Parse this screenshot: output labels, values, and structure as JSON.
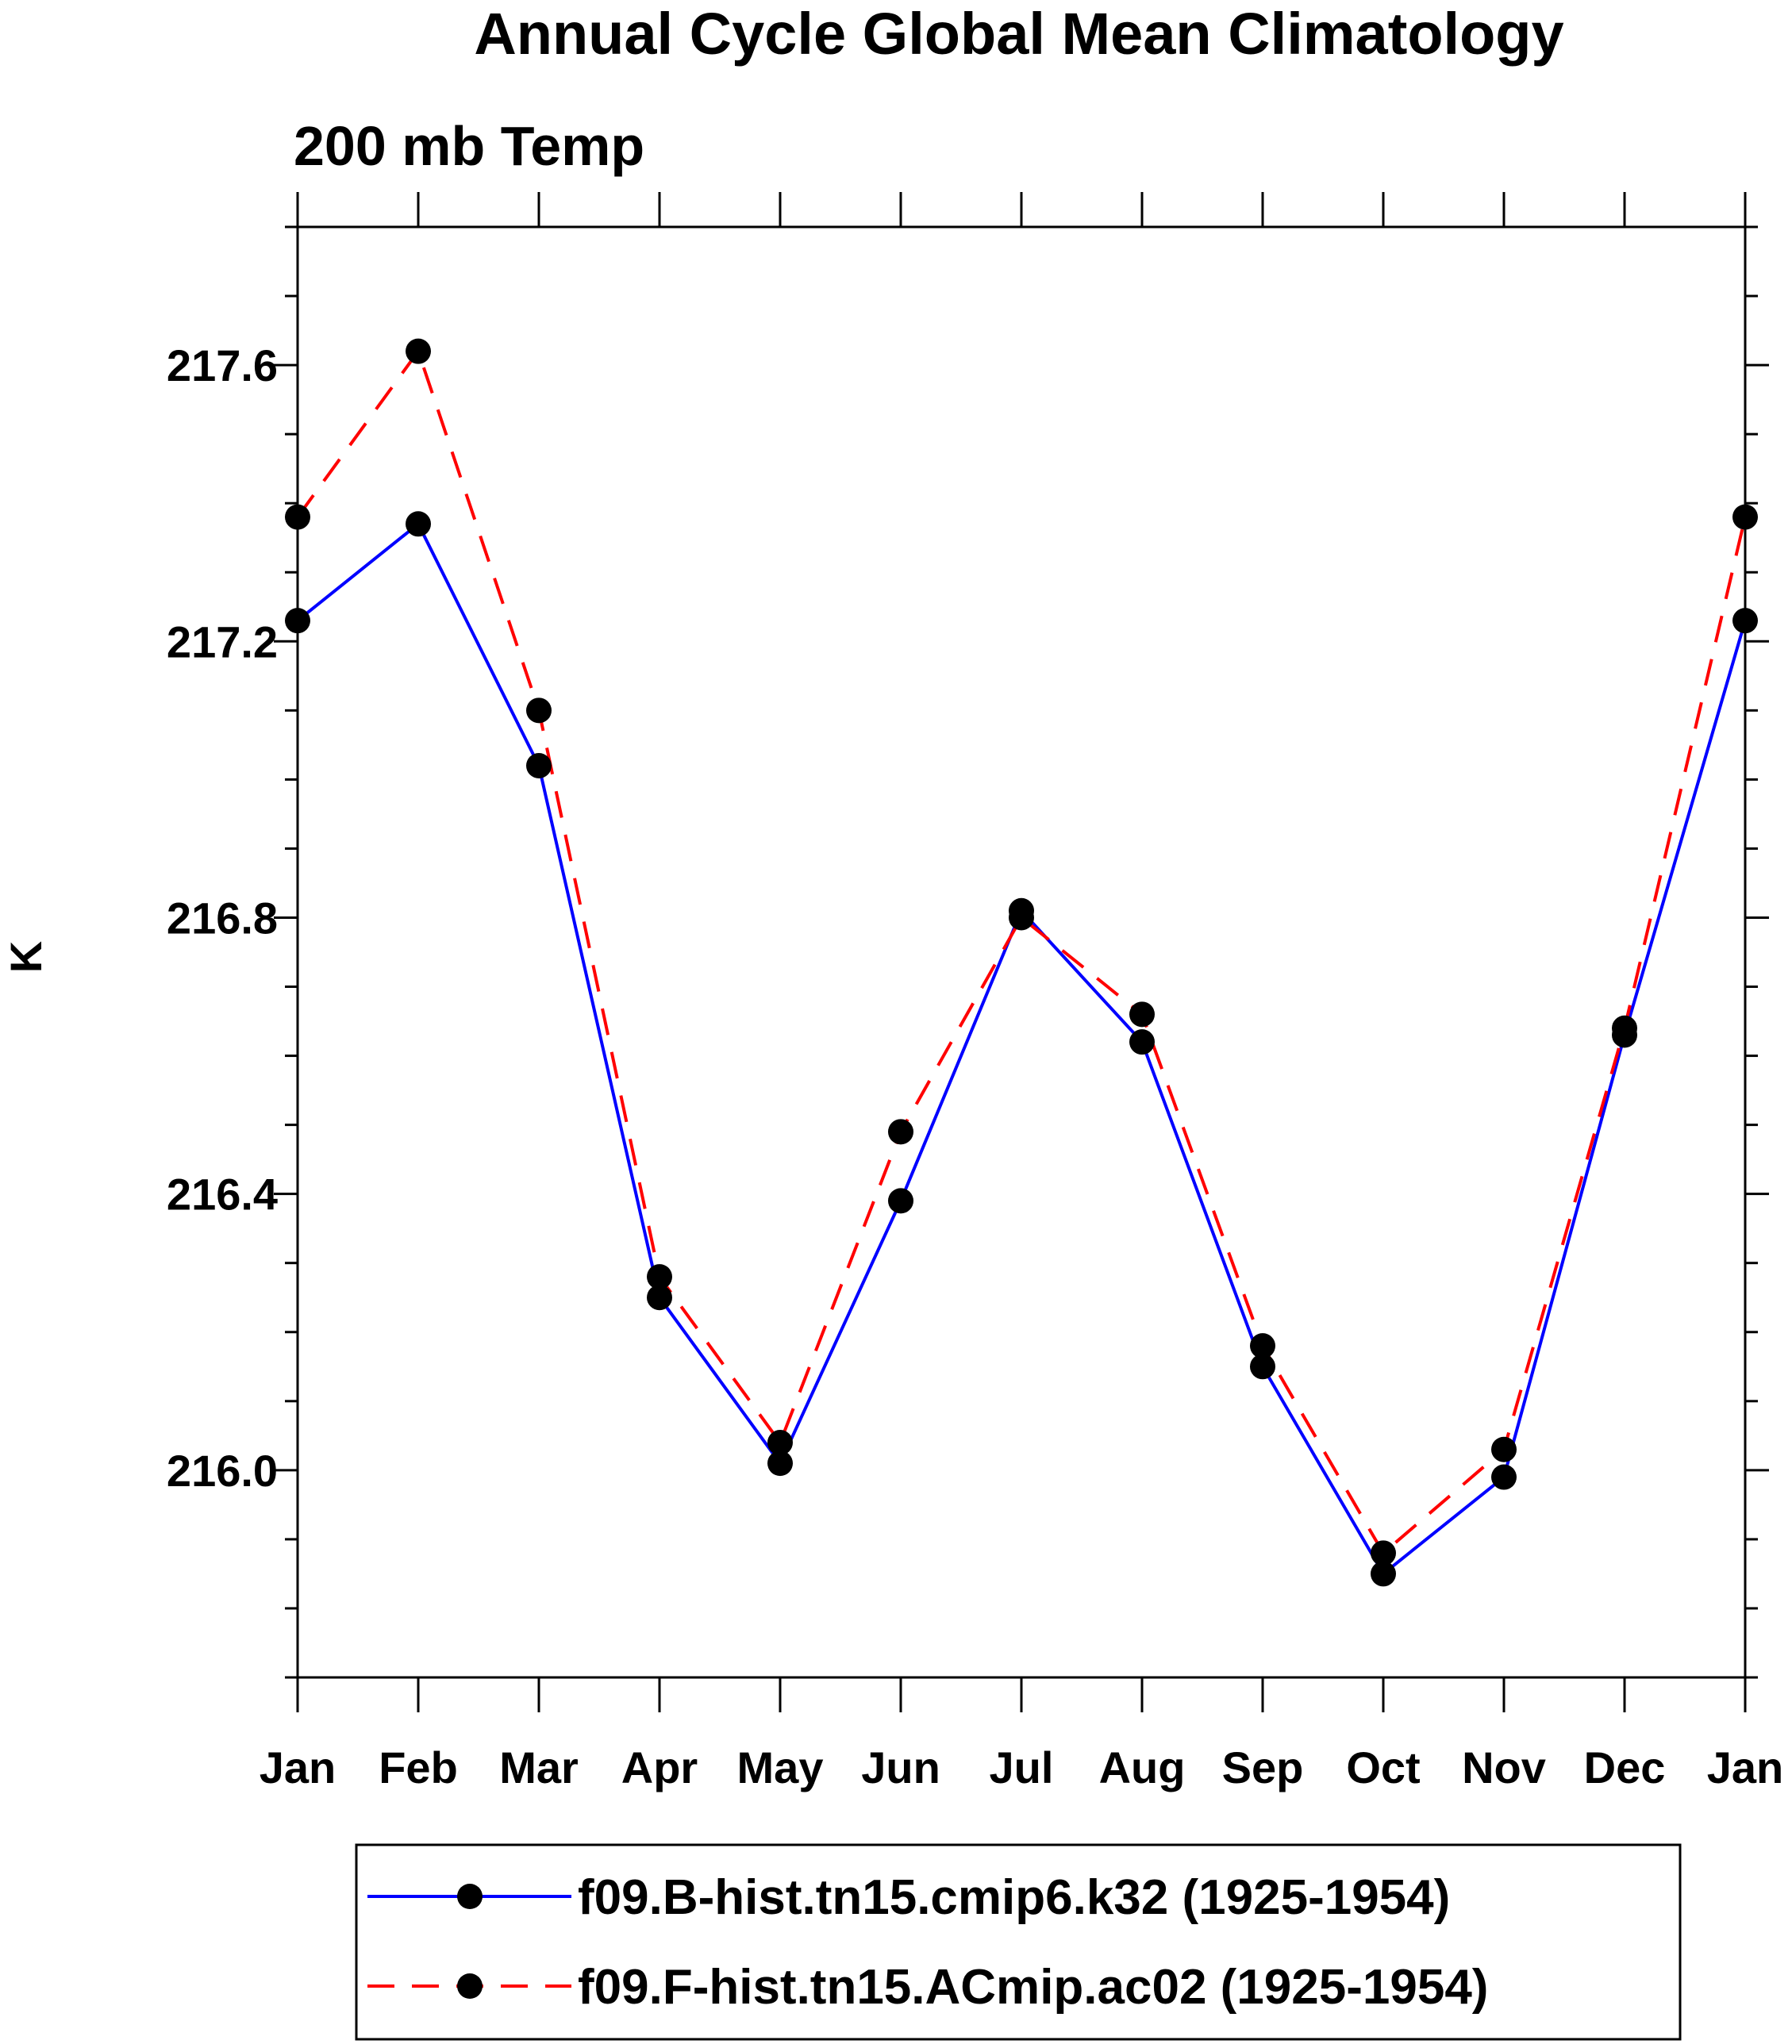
{
  "chart_data": {
    "type": "line",
    "title": "Annual Cycle Global Mean Climatology",
    "subtitle": "200 mb Temp",
    "xlabel": "",
    "ylabel": "K",
    "categories": [
      "Jan",
      "Feb",
      "Mar",
      "Apr",
      "May",
      "Jun",
      "Jul",
      "Aug",
      "Sep",
      "Oct",
      "Nov",
      "Dec",
      "Jan"
    ],
    "y_ticks": [
      "216.0",
      "216.4",
      "216.8",
      "217.2",
      "217.6"
    ],
    "ylim": [
      215.7,
      217.8
    ],
    "grid": false,
    "legend_position": "bottom",
    "series": [
      {
        "name": "f09.B-hist.tn15.cmip6.k32 (1925-1954)",
        "color": "#0000ff",
        "style": "solid",
        "marker": "circle",
        "values": [
          217.23,
          217.37,
          217.02,
          216.25,
          216.01,
          216.39,
          216.81,
          216.62,
          216.15,
          215.85,
          215.99,
          216.63,
          217.23
        ]
      },
      {
        "name": "f09.F-hist.tn15.ACmip.ac02 (1925-1954)",
        "color": "#ff0000",
        "style": "dashed",
        "marker": "circle",
        "values": [
          217.38,
          217.62,
          217.1,
          216.28,
          216.04,
          216.49,
          216.8,
          216.66,
          216.18,
          215.88,
          216.03,
          216.64,
          217.38
        ]
      }
    ]
  }
}
